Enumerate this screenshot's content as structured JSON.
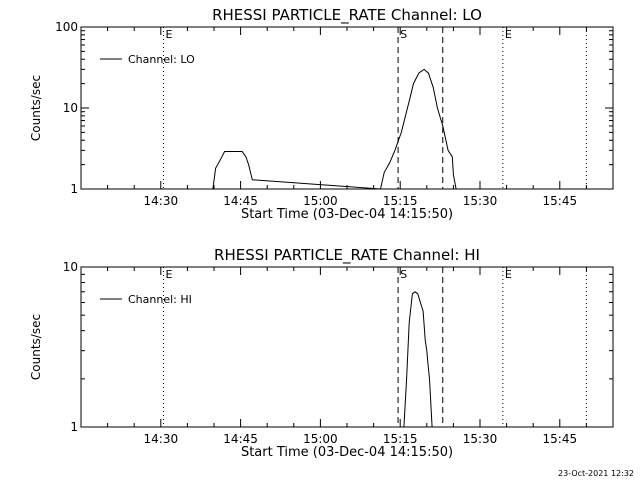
{
  "footer_date": "23-Oct-2021 12:32",
  "chart_data": [
    {
      "type": "line",
      "title": "RHESSI PARTICLE_RATE Channel: LO",
      "xlabel": "Start Time (03-Dec-04 14:15:50)",
      "ylabel": "Counts/sec",
      "y_scale": "log",
      "ylim": [
        1,
        100
      ],
      "y_ticks": [
        1,
        10,
        100
      ],
      "y_tick_labels": [
        "1",
        "10",
        "100"
      ],
      "xlim_minutes": [
        0,
        100
      ],
      "x_ticks": [
        15,
        30,
        45,
        60,
        75,
        90
      ],
      "x_tick_labels": [
        "14:30",
        "14:45",
        "15:00",
        "15:15",
        "15:30",
        "15:45"
      ],
      "legend": "top-left",
      "series": [
        {
          "name": "Channel: LO",
          "x": [
            24.8,
            25.3,
            26.2,
            27.0,
            28.0,
            30.3,
            31.0,
            31.5,
            32.2,
            56.3,
            57.0,
            58.0,
            59.0,
            60.2,
            61.8,
            62.5,
            63.5,
            64.5,
            65.3,
            66.2,
            67.0,
            68.0,
            69.0,
            69.8,
            70.0,
            70.5
          ],
          "values": [
            1,
            1.8,
            2.3,
            2.9,
            2.9,
            2.9,
            2.5,
            2.0,
            1.3,
            1.0,
            1.6,
            2.1,
            3.0,
            5.0,
            13.0,
            20.0,
            27.0,
            30.0,
            27.0,
            18.0,
            10.0,
            6.0,
            3.0,
            2.5,
            1.5,
            1.0
          ]
        }
      ],
      "vlines": [
        {
          "x": 15.5,
          "style": "dotted",
          "label": "E"
        },
        {
          "x": 59.6,
          "style": "dashed",
          "label": "S"
        },
        {
          "x": 68.0,
          "style": "dashed",
          "label": ""
        },
        {
          "x": 79.3,
          "style": "dotted",
          "label": "E"
        },
        {
          "x": 95.0,
          "style": "dotted",
          "label": ""
        }
      ]
    },
    {
      "type": "line",
      "title": "RHESSI PARTICLE_RATE Channel: HI",
      "xlabel": "Start Time (03-Dec-04 14:15:50)",
      "ylabel": "Counts/sec",
      "y_scale": "log",
      "ylim": [
        1,
        10
      ],
      "y_ticks": [
        1,
        10
      ],
      "y_tick_labels": [
        "1",
        "10"
      ],
      "xlim_minutes": [
        0,
        100
      ],
      "x_ticks": [
        15,
        30,
        45,
        60,
        75,
        90
      ],
      "x_tick_labels": [
        "14:30",
        "14:45",
        "15:00",
        "15:15",
        "15:30",
        "15:45"
      ],
      "legend": "top-left",
      "series": [
        {
          "name": "Channel: HI",
          "x": [
            60.7,
            61.2,
            61.7,
            62.3,
            62.8,
            63.3,
            63.8,
            64.3,
            64.7,
            65.0,
            65.2,
            65.5,
            66.0
          ],
          "values": [
            1.0,
            2.0,
            4.5,
            6.8,
            7.0,
            6.8,
            6.0,
            5.3,
            3.5,
            3.0,
            2.5,
            2.0,
            1.0
          ]
        }
      ],
      "vlines": [
        {
          "x": 15.5,
          "style": "dotted",
          "label": "E"
        },
        {
          "x": 59.6,
          "style": "dashed",
          "label": "S"
        },
        {
          "x": 68.0,
          "style": "dashed",
          "label": ""
        },
        {
          "x": 79.3,
          "style": "dotted",
          "label": "E"
        },
        {
          "x": 95.0,
          "style": "dotted",
          "label": ""
        }
      ]
    }
  ]
}
